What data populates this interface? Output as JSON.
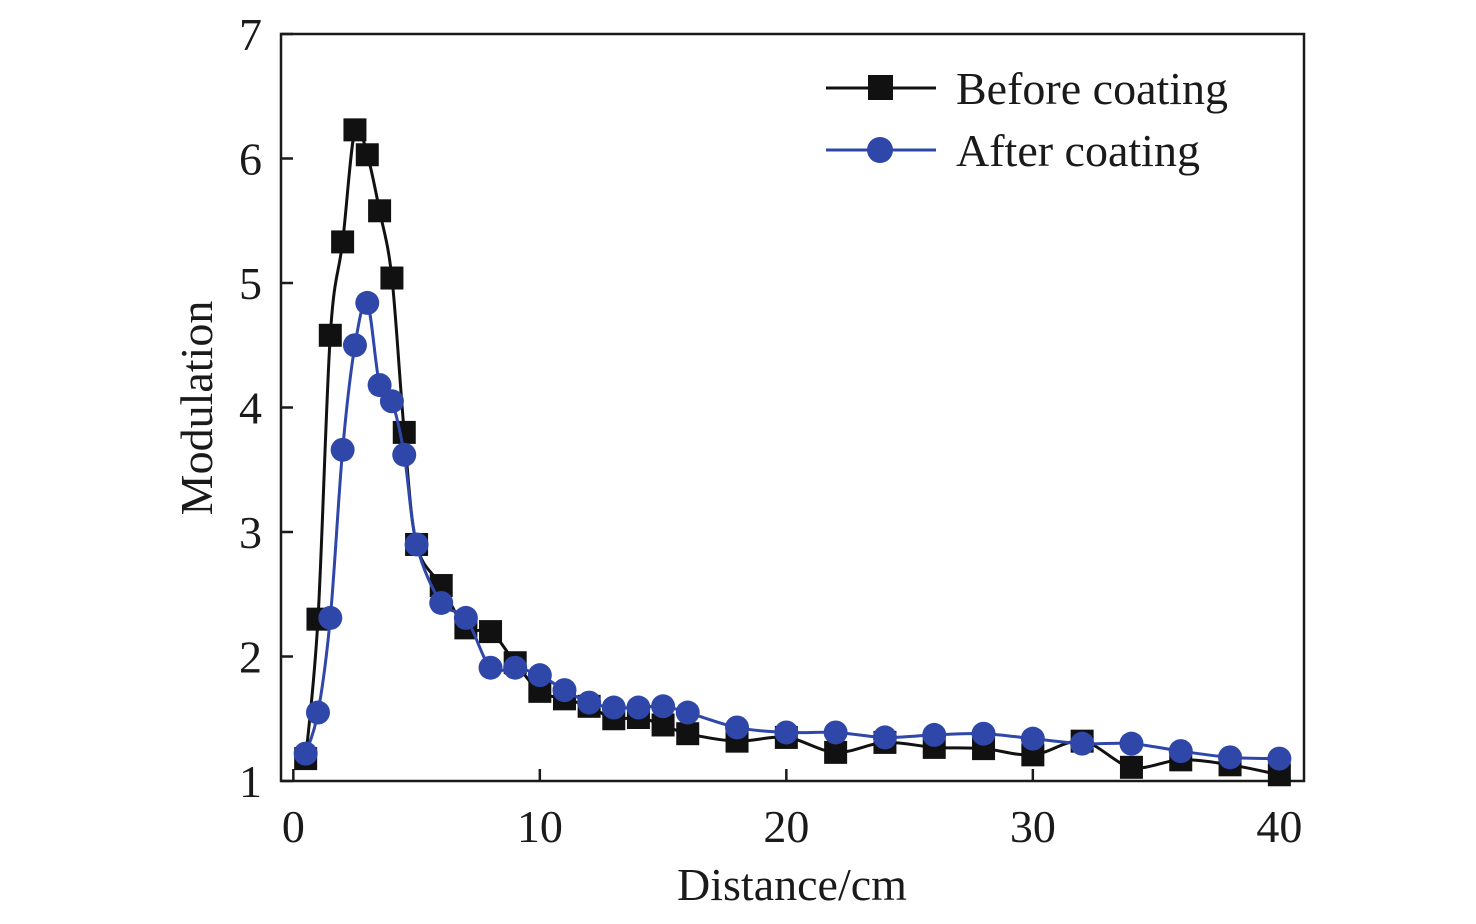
{
  "chart_data": {
    "type": "line",
    "xlabel": "Distance/cm",
    "ylabel": "Modulation",
    "xlim": [
      -0.5,
      41
    ],
    "ylim": [
      1,
      7
    ],
    "xticks": [
      0,
      10,
      20,
      30,
      40
    ],
    "yticks": [
      1,
      2,
      3,
      4,
      5,
      6,
      7
    ],
    "xtick_labels": [
      "0",
      "10",
      "20",
      "30",
      "40"
    ],
    "ytick_labels": [
      "1",
      "2",
      "3",
      "4",
      "5",
      "6",
      "7"
    ],
    "grid": false,
    "legend_position": "top-right",
    "series": [
      {
        "name": "Before coating",
        "color": "#111111",
        "marker": "square",
        "x": [
          0.5,
          1,
          1.5,
          2,
          2.5,
          3,
          3.5,
          4,
          4.5,
          5,
          6,
          7,
          8,
          9,
          10,
          11,
          12,
          13,
          14,
          15,
          16,
          18,
          20,
          22,
          24,
          26,
          28,
          30,
          32,
          34,
          36,
          38,
          40
        ],
        "y": [
          1.18,
          2.3,
          4.58,
          5.33,
          6.23,
          6.03,
          5.58,
          5.04,
          3.8,
          2.9,
          2.57,
          2.23,
          2.2,
          1.95,
          1.72,
          1.66,
          1.6,
          1.5,
          1.51,
          1.45,
          1.38,
          1.32,
          1.35,
          1.23,
          1.31,
          1.27,
          1.26,
          1.21,
          1.32,
          1.11,
          1.17,
          1.13,
          1.05
        ]
      },
      {
        "name": "After coating",
        "color": "#2f47a8",
        "marker": "circle",
        "x": [
          0.5,
          1,
          1.5,
          2,
          2.5,
          3,
          3.5,
          4,
          4.5,
          5,
          6,
          7,
          8,
          9,
          10,
          11,
          12,
          13,
          14,
          15,
          16,
          18,
          20,
          22,
          24,
          26,
          28,
          30,
          32,
          34,
          36,
          38,
          40
        ],
        "y": [
          1.22,
          1.55,
          2.31,
          3.66,
          4.5,
          4.84,
          4.18,
          4.05,
          3.62,
          2.9,
          2.43,
          2.31,
          1.91,
          1.91,
          1.85,
          1.73,
          1.63,
          1.59,
          1.59,
          1.6,
          1.55,
          1.43,
          1.39,
          1.39,
          1.35,
          1.37,
          1.38,
          1.34,
          1.3,
          1.3,
          1.24,
          1.19,
          1.18
        ]
      }
    ]
  }
}
